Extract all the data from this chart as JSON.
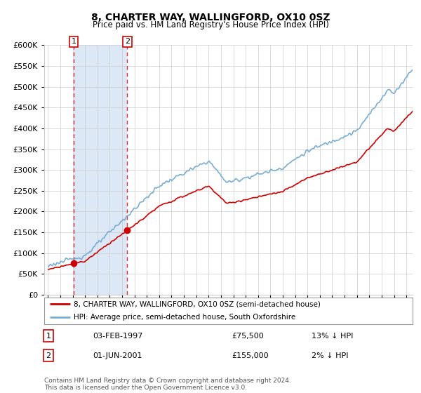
{
  "title1": "8, CHARTER WAY, WALLINGFORD, OX10 0SZ",
  "title2": "Price paid vs. HM Land Registry's House Price Index (HPI)",
  "legend_line1": "8, CHARTER WAY, WALLINGFORD, OX10 0SZ (semi-detached house)",
  "legend_line2": "HPI: Average price, semi-detached house, South Oxfordshire",
  "footer": "Contains HM Land Registry data © Crown copyright and database right 2024.\nThis data is licensed under the Open Government Licence v3.0.",
  "transaction_table": [
    {
      "num": "1",
      "date": "03-FEB-1997",
      "price": "£75,500",
      "rel": "13% ↓ HPI"
    },
    {
      "num": "2",
      "date": "01-JUN-2001",
      "price": "£155,000",
      "rel": "2% ↓ HPI"
    }
  ],
  "t1_x": 1997.09,
  "t1_y": 75500,
  "t2_x": 2001.42,
  "t2_y": 155000,
  "bg_color": "#ffffff",
  "shade_color": "#dce8f5",
  "red_color": "#cc0000",
  "blue_color": "#7aadd4",
  "grid_color": "#cccccc",
  "ylim": [
    0,
    600000
  ],
  "ytick_max": 600000,
  "xlim_start": 1994.7,
  "xlim_end": 2024.5
}
